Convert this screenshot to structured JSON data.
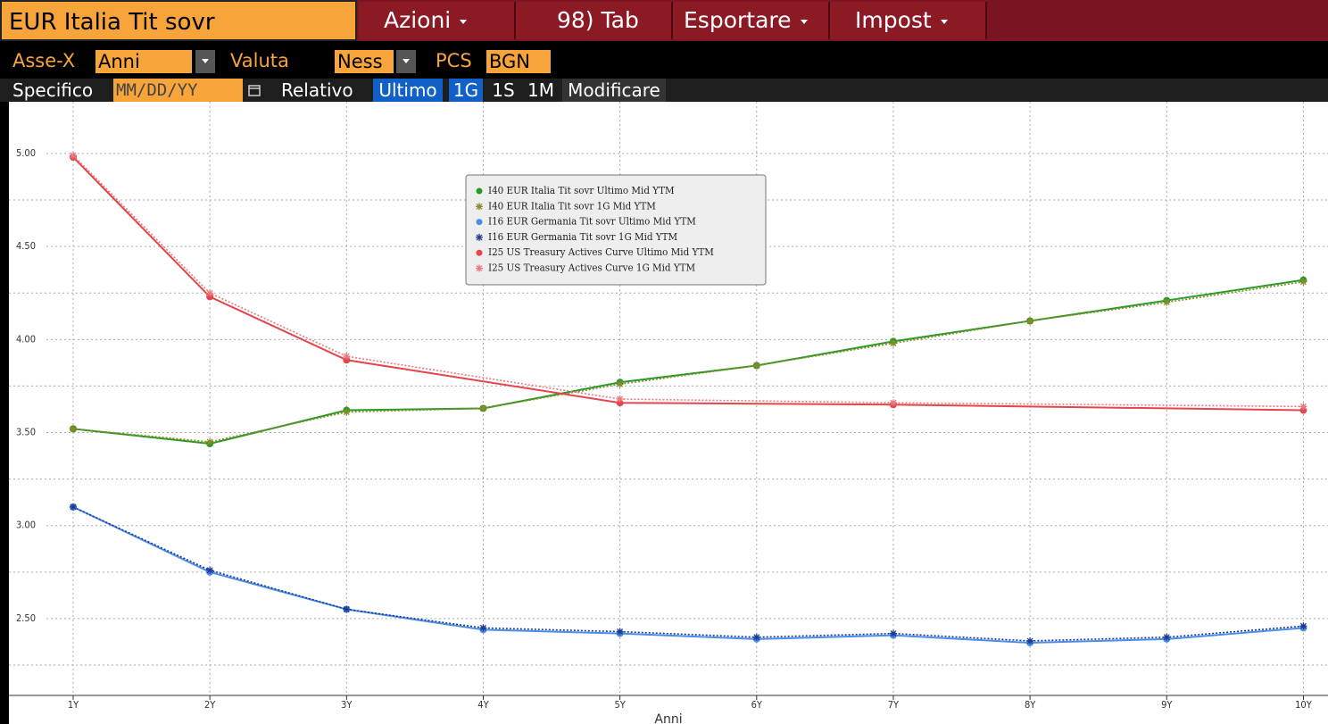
{
  "toolbar": {
    "title": "EUR Italia Tit sovr",
    "buttons": [
      "Azioni",
      "98) Tab",
      "Esportare",
      "Impost"
    ]
  },
  "controls": {
    "x_axis_label": "Asse-X",
    "x_axis_value": "Anni",
    "currency_label": "Valuta",
    "currency_value": "Ness",
    "pcs_label": "PCS",
    "pcs_value": "BGN",
    "specific_label": "Specifico",
    "date_placeholder": "MM/DD/YY",
    "relative_label": "Relativo",
    "relative_options": [
      "Ultimo",
      "1G",
      "1S",
      "1M"
    ],
    "edit_button": "Modificare"
  },
  "chart_data": {
    "type": "line",
    "xlabel": "Anni",
    "xlim": [
      0.53,
      10.18
    ],
    "xticks": [
      {
        "value": 1,
        "label": "1Y"
      },
      {
        "value": 2,
        "label": "2Y"
      },
      {
        "value": 3,
        "label": "3Y"
      },
      {
        "value": 4,
        "label": "4Y"
      },
      {
        "value": 5,
        "label": "5Y"
      },
      {
        "value": 6,
        "label": "6Y"
      },
      {
        "value": 7,
        "label": "7Y"
      },
      {
        "value": 8,
        "label": "8Y"
      },
      {
        "value": 9,
        "label": "9Y"
      },
      {
        "value": 10,
        "label": "10Y"
      }
    ],
    "ylim": [
      2.087,
      5.278
    ],
    "yticks": [
      {
        "value": 2.5,
        "label": "2.50"
      },
      {
        "value": 3,
        "label": "3.00"
      },
      {
        "value": 3.5,
        "label": "3.50"
      },
      {
        "value": 4,
        "label": "4.00"
      },
      {
        "value": 4.5,
        "label": "4.50"
      },
      {
        "value": 5,
        "label": "5.00"
      }
    ],
    "minor_yticks": [
      2.25,
      2.75,
      3.25,
      3.75,
      4.25,
      4.75
    ],
    "grid": true,
    "series": [
      {
        "name": "I40 EUR Italia Tit sovr Ultimo Mid YTM",
        "color": "#2a9a2a",
        "marker": "dot",
        "dashed": false,
        "x": [
          1,
          2,
          3,
          4,
          5,
          6,
          7,
          8,
          9,
          10
        ],
        "values": [
          3.52,
          3.44,
          3.62,
          3.63,
          3.77,
          3.86,
          3.99,
          4.1,
          4.21,
          4.32
        ]
      },
      {
        "name": "I40 EUR Italia Tit sovr 1G Mid YTM",
        "color": "#8a8a28",
        "marker": "star",
        "dashed": true,
        "x": [
          1,
          2,
          3,
          4,
          5,
          6,
          7,
          8,
          9,
          10
        ],
        "values": [
          3.52,
          3.45,
          3.61,
          3.63,
          3.76,
          3.86,
          3.98,
          4.1,
          4.2,
          4.31
        ]
      },
      {
        "name": "I16 EUR Germania Tit sovr Ultimo Mid YTM",
        "color": "#4a8ee8",
        "marker": "dot",
        "dashed": false,
        "x": [
          1,
          2,
          3,
          4,
          5,
          6,
          7,
          8,
          9,
          10
        ],
        "values": [
          3.1,
          2.75,
          2.55,
          2.44,
          2.42,
          2.39,
          2.41,
          2.37,
          2.39,
          2.45
        ]
      },
      {
        "name": "I16 EUR Germania Tit sovr 1G Mid YTM",
        "color": "#1f3a93",
        "marker": "star",
        "dashed": true,
        "x": [
          1,
          2,
          3,
          4,
          5,
          6,
          7,
          8,
          9,
          10
        ],
        "values": [
          3.1,
          2.76,
          2.55,
          2.45,
          2.43,
          2.4,
          2.42,
          2.38,
          2.4,
          2.46
        ]
      },
      {
        "name": "I25 US Treasury Actives Curve Ultimo Mid YTM",
        "color": "#e4454a",
        "marker": "dot",
        "dashed": false,
        "x": [
          1,
          2,
          3,
          5,
          7,
          10
        ],
        "values": [
          4.98,
          4.23,
          3.89,
          3.66,
          3.65,
          3.62
        ]
      },
      {
        "name": "I25 US Treasury Actives Curve 1G Mid YTM",
        "color": "#e87a80",
        "marker": "star",
        "dashed": true,
        "x": [
          1,
          2,
          3,
          5,
          7,
          10
        ],
        "values": [
          4.99,
          4.25,
          3.91,
          3.68,
          3.66,
          3.64
        ]
      }
    ]
  }
}
